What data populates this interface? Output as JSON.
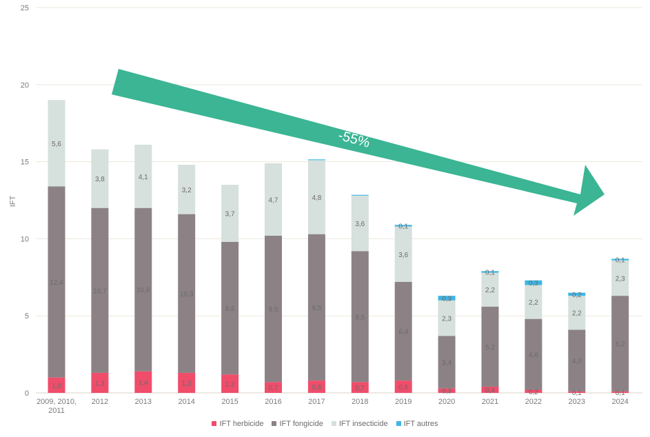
{
  "chart_data": {
    "type": "bar",
    "stacked": true,
    "ylabel": "IFT",
    "ylim": [
      0,
      25
    ],
    "yticks": [
      0,
      5,
      10,
      15,
      20,
      25
    ],
    "grid": true,
    "legend_position": "bottom",
    "categories": [
      "2009, 2010, 2011",
      "2012",
      "2013",
      "2014",
      "2015",
      "2016",
      "2017",
      "2018",
      "2019",
      "2020",
      "2021",
      "2022",
      "2023",
      "2024"
    ],
    "category_lines": [
      [
        "2009, 2010,",
        "2011"
      ],
      [
        "2012"
      ],
      [
        "2013"
      ],
      [
        "2014"
      ],
      [
        "2015"
      ],
      [
        "2016"
      ],
      [
        "2017"
      ],
      [
        "2018"
      ],
      [
        "2019"
      ],
      [
        "2020"
      ],
      [
        "2021"
      ],
      [
        "2022"
      ],
      [
        "2023"
      ],
      [
        "2024"
      ]
    ],
    "series": [
      {
        "name": "IFT herbicide",
        "color": "#f04d6b",
        "values": [
          1.0,
          1.3,
          1.4,
          1.3,
          1.2,
          0.7,
          0.8,
          0.7,
          0.8,
          0.3,
          0.4,
          0.2,
          0.1,
          0.1
        ],
        "labels": [
          "1,0",
          "1,3",
          "1,4",
          "1,3",
          "1,2",
          "0,7",
          "0,8",
          "0,7",
          "0,8",
          "0,3",
          "0,4",
          "0,2",
          "0,1",
          "0,1"
        ]
      },
      {
        "name": "IFT fongicide",
        "color": "#8c8286",
        "values": [
          12.4,
          10.7,
          10.6,
          10.3,
          8.6,
          9.5,
          9.5,
          8.5,
          6.4,
          3.4,
          5.2,
          4.6,
          4.0,
          6.2
        ],
        "labels": [
          "12,4",
          "10,7",
          "10,6",
          "10,3",
          "8,6",
          "9,5",
          "9,5",
          "8,5",
          "6,4",
          "3,4",
          "5,2",
          "4,6",
          "4,0",
          "6,2"
        ]
      },
      {
        "name": "IFT insecticide",
        "color": "#d6e0dc",
        "values": [
          5.6,
          3.8,
          4.1,
          3.2,
          3.7,
          4.7,
          4.8,
          3.6,
          3.6,
          2.3,
          2.2,
          2.2,
          2.2,
          2.3
        ],
        "labels": [
          "5,6",
          "3,8",
          "4,1",
          "3,2",
          "3,7",
          "4,7",
          "4,8",
          "3,6",
          "3,6",
          "2,3",
          "2,2",
          "2,2",
          "2,2",
          "2,3"
        ]
      },
      {
        "name": "IFT autres",
        "color": "#3db6e4",
        "values": [
          0.0,
          0.0,
          0.0,
          0.0,
          0.0,
          0.0,
          0.05,
          0.05,
          0.1,
          0.3,
          0.1,
          0.3,
          0.2,
          0.1
        ],
        "labels": [
          "",
          "",
          "",
          "",
          "",
          "",
          "",
          "",
          "0,1",
          "0,3",
          "0,1",
          "0,3",
          "0,2",
          "0,1"
        ]
      }
    ],
    "annotation": {
      "text": "-55%",
      "color": "#3bb594"
    }
  }
}
